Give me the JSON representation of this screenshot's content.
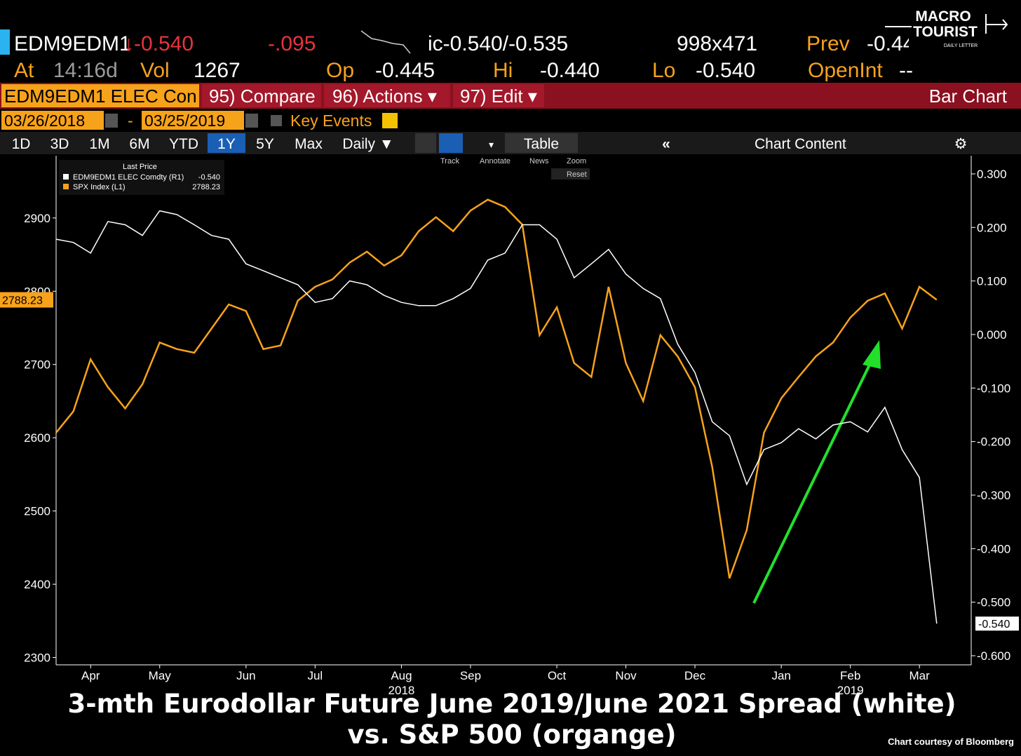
{
  "header": {
    "ticker": "EDM9EDM1",
    "change": "↓-0.540",
    "pct_change": "-.095",
    "bid_ask": "ic-0.540/-0.535",
    "size": "998x471",
    "prev": {
      "label": "Prev",
      "value": "-0.44"
    },
    "time": {
      "label": "At",
      "value": "14:16d"
    },
    "vol": {
      "label": "Vol",
      "value": "1267"
    },
    "open": {
      "label": "Op",
      "value": "-0.445"
    },
    "high": {
      "label": "Hi",
      "value": "-0.440"
    },
    "low": {
      "label": "Lo",
      "value": "-0.540"
    },
    "open_int": {
      "label": "OpenInt",
      "value": "--"
    }
  },
  "logo": {
    "line1": "MACRO",
    "line2": "TOURIST",
    "line3": "DAILY LETTER"
  },
  "toolbar": {
    "security": "EDM9EDM1 ELEC Con",
    "compare": "95) Compare",
    "actions": "96) Actions ▾",
    "edit": "97) Edit ▾",
    "view": "Bar Chart"
  },
  "dates": {
    "start": "03/26/2018",
    "separator": "-",
    "end": "03/25/2019",
    "key_events": "Key Events"
  },
  "tabs": [
    "1D",
    "3D",
    "1M",
    "6M",
    "YTD",
    "1Y",
    "5Y",
    "Max"
  ],
  "frequency": "Daily ▼",
  "table_button": "Table",
  "collapse_button": "«",
  "content_button": "Chart Content",
  "chart_tools": [
    "Track",
    "Annotate",
    "News",
    "Zoom"
  ],
  "reset_button": "Reset",
  "legend_title": "Last Price",
  "caption": {
    "line1": "3-mth Eurodollar Future June 2019/June 2021 Spread (white)",
    "line2": "vs. S&P 500 (organge)",
    "credit": "Chart courtesy of Bloomberg"
  },
  "chart_data": {
    "type": "line",
    "categories": [
      null,
      null,
      "Apr",
      null,
      null,
      null,
      "May",
      null,
      null,
      null,
      null,
      "Jun",
      null,
      null,
      null,
      "Jul",
      null,
      null,
      null,
      null,
      "Aug",
      null,
      null,
      null,
      "Sep",
      null,
      null,
      null,
      null,
      "Oct",
      null,
      null,
      null,
      "Nov",
      null,
      null,
      null,
      "Dec",
      null,
      null,
      null,
      null,
      "Jan",
      null,
      null,
      null,
      "Feb",
      null,
      null,
      null,
      "Mar",
      null,
      null,
      null
    ],
    "x_group_labels": [
      "2018",
      "2019"
    ],
    "series": [
      {
        "name": "SPX Index  (L1)",
        "color": "#f7a21b",
        "axis": "y",
        "values": [
          2607,
          2636,
          2707,
          2669,
          2640,
          2673,
          2730,
          2721,
          2716,
          2749,
          2782,
          2773,
          2721,
          2726,
          2787,
          2806,
          2816,
          2839,
          2854,
          2835,
          2849,
          2882,
          2901,
          2882,
          2910,
          2925,
          2915,
          2891,
          2740,
          2778,
          2702,
          2683,
          2806,
          2702,
          2650,
          2740,
          2711,
          2669,
          2560,
          2408,
          2474,
          2607,
          2654,
          2683,
          2711,
          2730,
          2764,
          2787,
          2797,
          2749,
          2806,
          2788.23,
          null,
          null
        ]
      },
      {
        "name": "EDM9EDM1 ELEC Comdty  (R1)",
        "color": "#ffffff",
        "axis": "y2",
        "values": [
          0.178,
          0.172,
          0.152,
          0.211,
          0.205,
          0.185,
          0.231,
          0.224,
          0.205,
          0.185,
          0.178,
          0.132,
          0.119,
          0.106,
          0.093,
          0.06,
          0.067,
          0.1,
          0.093,
          0.073,
          0.06,
          0.054,
          0.054,
          0.067,
          0.086,
          0.139,
          0.152,
          0.205,
          0.205,
          0.178,
          0.106,
          0.132,
          0.159,
          0.113,
          0.086,
          0.067,
          -0.018,
          -0.071,
          -0.163,
          -0.189,
          -0.28,
          -0.215,
          -0.202,
          -0.176,
          -0.195,
          -0.169,
          -0.163,
          -0.182,
          -0.136,
          -0.215,
          -0.267,
          -0.54,
          null,
          null
        ],
        "value_labels": [
          null,
          null,
          null,
          null,
          null,
          null,
          null,
          null,
          null,
          null,
          null,
          null,
          null,
          null,
          null,
          null,
          null,
          null,
          null,
          null,
          null,
          null,
          null,
          null,
          null,
          null,
          null,
          null,
          null,
          null,
          null,
          null,
          null,
          null,
          null,
          null,
          null,
          null,
          null,
          null,
          null,
          null,
          null,
          null,
          null,
          null,
          null,
          null,
          null,
          null,
          null,
          "-0.540",
          null,
          null
        ]
      }
    ],
    "ylim": [
      2290,
      2985
    ],
    "yticks": [
      2300,
      2400,
      2500,
      2600,
      2700,
      2800,
      2900
    ],
    "y2lim": [
      -0.617,
      0.334
    ],
    "y2ticks": [
      {
        "value": -0.6,
        "label": "-0.600"
      },
      {
        "value": -0.5,
        "label": "-0.500"
      },
      {
        "value": -0.4,
        "label": "-0.400"
      },
      {
        "value": -0.3,
        "label": "-0.300"
      },
      {
        "value": -0.2,
        "label": "-0.200"
      },
      {
        "value": -0.1,
        "label": "-0.100"
      },
      {
        "value": 0,
        "label": "0.000"
      },
      {
        "value": 0.1,
        "label": "0.100"
      },
      {
        "value": 0.2,
        "label": "0.200"
      },
      {
        "value": 0.3,
        "label": "0.300"
      }
    ],
    "grid": false
  }
}
